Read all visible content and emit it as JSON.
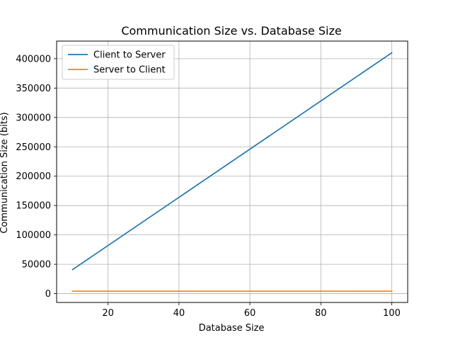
{
  "chart_data": {
    "type": "line",
    "title": "Communication Size vs. Database Size",
    "xlabel": "Database Size",
    "ylabel": "Communication Size (bits)",
    "xlim": [
      5.5,
      104.5
    ],
    "ylim": [
      -15000,
      430000
    ],
    "xticks": [
      20,
      40,
      60,
      80,
      100
    ],
    "yticks": [
      0,
      50000,
      100000,
      150000,
      200000,
      250000,
      300000,
      350000,
      400000
    ],
    "grid": true,
    "legend_position": "top-left",
    "series": [
      {
        "name": "Client to Server",
        "color": "#1f77b4",
        "x": [
          10,
          100
        ],
        "y": [
          41000,
          410000
        ]
      },
      {
        "name": "Server to Client",
        "color": "#ff7f0e",
        "x": [
          10,
          100
        ],
        "y": [
          4200,
          4200
        ]
      }
    ]
  }
}
